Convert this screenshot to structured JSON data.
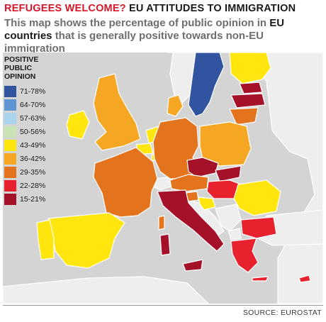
{
  "header": {
    "title_part1": "REFUGEES WELCOME?",
    "title_part2": "EU ATTITUDES TO IMMIGRATION",
    "subtitle_a": "This map shows the percentage of public opinion in",
    "subtitle_b": "EU countries",
    "subtitle_c": "that is generally positive towards non-EU immigration"
  },
  "legend": {
    "title_line1": "POSITIVE",
    "title_line2": "PUBLIC OPINION",
    "items": [
      {
        "label": "71-78%",
        "color": "#3054a0"
      },
      {
        "label": "64-70%",
        "color": "#5f95d0"
      },
      {
        "label": "57-63%",
        "color": "#a9d4ee"
      },
      {
        "label": "50-56%",
        "color": "#c9e3b4"
      },
      {
        "label": "43-49%",
        "color": "#ffe60f"
      },
      {
        "label": "36-42%",
        "color": "#f5a623"
      },
      {
        "label": "29-35%",
        "color": "#e4731e"
      },
      {
        "label": "22-28%",
        "color": "#e8212f"
      },
      {
        "label": "15-21%",
        "color": "#a6112a"
      }
    ]
  },
  "colors": {
    "sea": "#d4d4d4",
    "land_non_eu": "#eeeeee",
    "border": "#ffffff"
  },
  "footer": {
    "source": "SOURCE: EUROSTAT"
  }
}
